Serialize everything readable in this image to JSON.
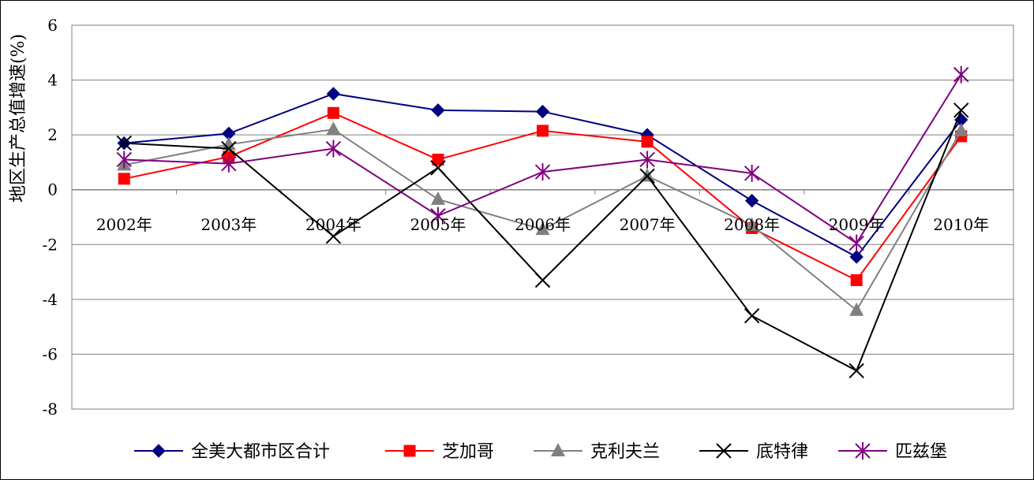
{
  "chart_data": {
    "type": "line",
    "title": "",
    "xlabel": "",
    "ylabel": "地区生产总值增速(%)",
    "ylim": [
      -8,
      6
    ],
    "yticks": [
      6,
      4,
      2,
      0,
      -2,
      -4,
      -6,
      -8
    ],
    "categories": [
      "2002年",
      "2003年",
      "2004年",
      "2005年",
      "2006年",
      "2007年",
      "2008年",
      "2009年",
      "2010年"
    ],
    "grid": "horizontal",
    "legend_position": "bottom",
    "series": [
      {
        "name": "全美大都市区合计",
        "color": "#000080",
        "marker": "diamond",
        "values": [
          1.7,
          2.05,
          3.5,
          2.9,
          2.85,
          2.0,
          -0.4,
          -2.45,
          2.55
        ]
      },
      {
        "name": "芝加哥",
        "color": "#ff0000",
        "marker": "square",
        "values": [
          0.4,
          1.2,
          2.8,
          1.1,
          2.15,
          1.75,
          -1.4,
          -3.3,
          1.95
        ]
      },
      {
        "name": "克利夫兰",
        "color": "#808080",
        "marker": "triangle",
        "values": [
          0.9,
          1.65,
          2.2,
          -0.35,
          -1.45,
          0.5,
          -1.3,
          -4.4,
          2.15
        ]
      },
      {
        "name": "底特律",
        "color": "#000000",
        "marker": "x",
        "values": [
          1.7,
          1.5,
          -1.7,
          0.8,
          -3.3,
          0.5,
          -4.6,
          -6.6,
          2.9
        ]
      },
      {
        "name": "匹兹堡",
        "color": "#800080",
        "marker": "star",
        "values": [
          1.1,
          0.95,
          1.5,
          -0.95,
          0.65,
          1.1,
          0.6,
          -1.95,
          4.2
        ]
      }
    ]
  }
}
